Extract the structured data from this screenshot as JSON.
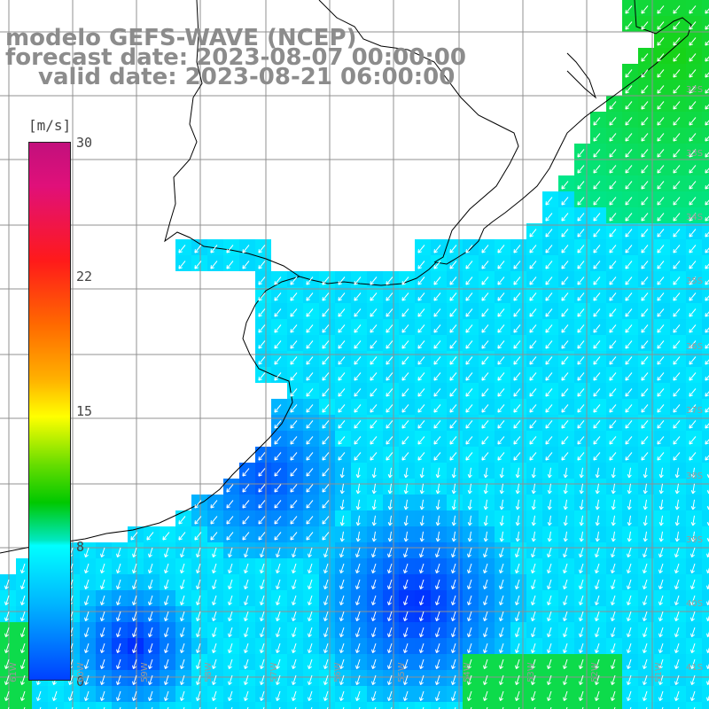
{
  "title": {
    "line1": "modelo GEFS-WAVE (NCEP)",
    "line2": "forecast date: 2023-08-07 00:00:00",
    "line3": "valid date: 2023-08-21 06:00:00"
  },
  "colorbar": {
    "unit": "[m/s]",
    "ticks": [
      "30",
      "22",
      "15",
      "8",
      "0"
    ],
    "tick_values": [
      30,
      22,
      15,
      8,
      0
    ]
  },
  "lat_labels": [
    "32S",
    "33S",
    "34S",
    "35S",
    "36S",
    "37S",
    "38S",
    "39S",
    "40S",
    "41S"
  ],
  "lon_labels": [
    "61W",
    "60W",
    "59W",
    "58W",
    "57W",
    "56W",
    "55W",
    "54W",
    "53W",
    "52W",
    "51W"
  ],
  "colors": {
    "land": "#ffffff",
    "grid": "#909090",
    "coast": "#000000",
    "arrow": "#ffffff",
    "title": "#8c8c8c"
  },
  "field": {
    "variable": "wind speed",
    "units": "m/s",
    "range": [
      0,
      30
    ]
  }
}
